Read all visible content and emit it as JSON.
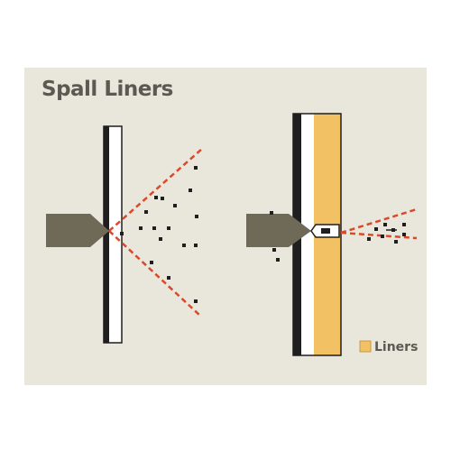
{
  "title": "Spall Liners",
  "legend": {
    "label": "Liners",
    "color": "#f2c163"
  },
  "colors": {
    "background": "#e9e6dc",
    "projectile": "#6f6a58",
    "armor_edge": "#1f1f1f",
    "armor_face": "#ffffff",
    "liner": "#f2c163",
    "spall_cone": "#d9492a",
    "fragment": "#1f1f1f",
    "title": "#5b5a52"
  },
  "scenes": [
    {
      "name": "without-liner",
      "label": ""
    },
    {
      "name": "with-liner",
      "label": ""
    }
  ]
}
